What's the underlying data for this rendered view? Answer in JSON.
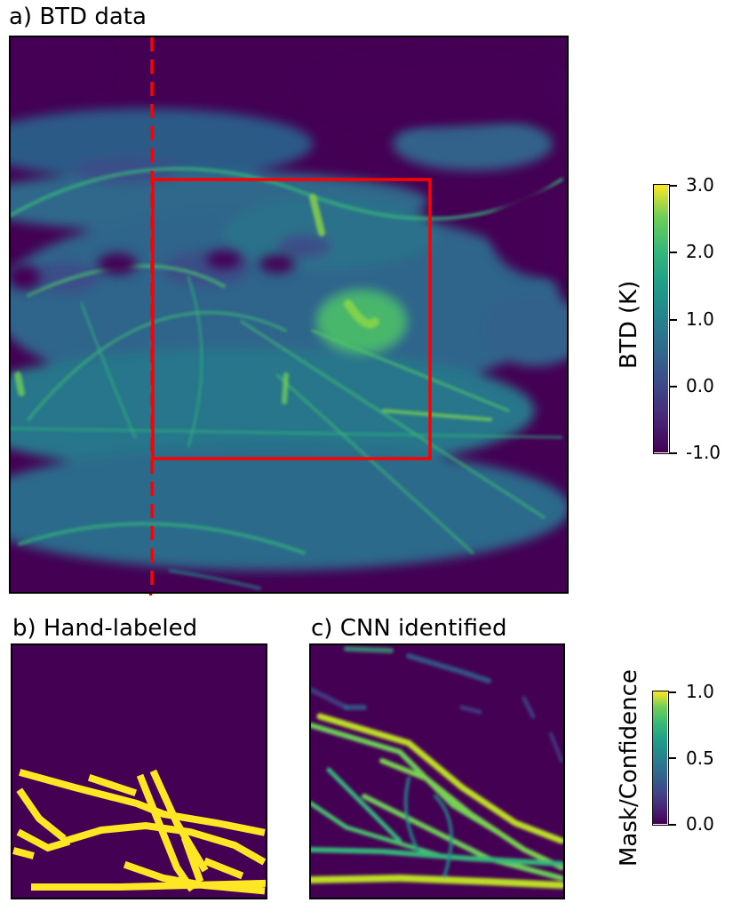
{
  "chart_data": [
    {
      "type": "heatmap",
      "title": "a) BTD data",
      "colormap": "viridis",
      "colorbar": {
        "label": "BTD (K)",
        "range": [
          -1.0,
          3.0
        ],
        "ticks": [
          "3.0",
          "2.0",
          "1.0",
          "0.0",
          "-1.0"
        ]
      },
      "overlays": [
        {
          "kind": "dashed-vertical-line",
          "color": "#ff0000"
        },
        {
          "kind": "rectangle",
          "color": "#ff0000"
        }
      ]
    },
    {
      "type": "heatmap",
      "title": "b) Hand-labeled",
      "colormap": "viridis"
    },
    {
      "type": "heatmap",
      "title": "c) CNN identified",
      "colormap": "viridis",
      "colorbar": {
        "label": "Mask/Confidence",
        "range": [
          0.0,
          1.0
        ],
        "ticks": [
          "1.0",
          "0.5",
          "0.0"
        ]
      }
    }
  ],
  "colors": {
    "viridis_low": "#440154",
    "viridis_mid": "#21918c",
    "viridis_high": "#fde725",
    "overlay_red": "#ff0000"
  }
}
